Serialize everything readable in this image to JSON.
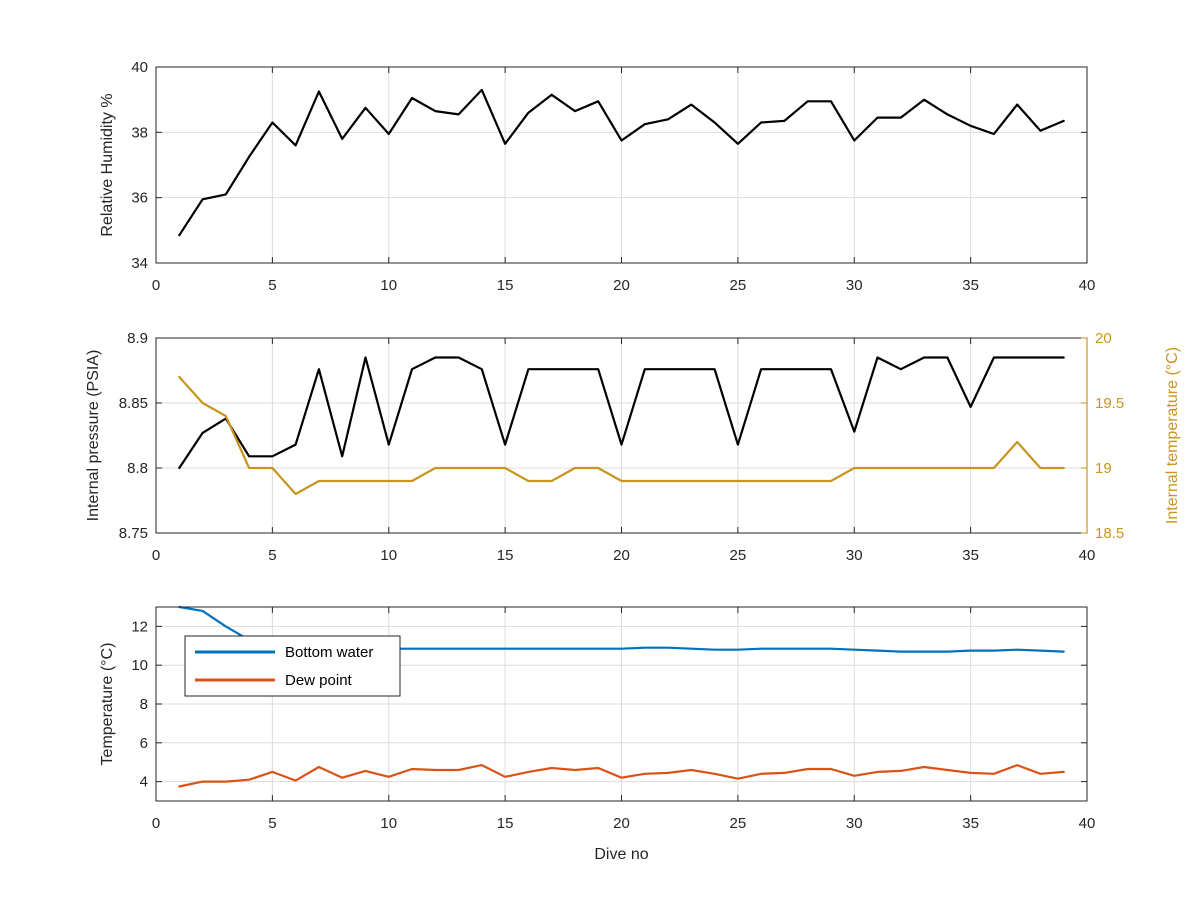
{
  "chart_data": [
    {
      "type": "line",
      "xlabel": "",
      "ylabel": "Relative Humidity %",
      "xlim": [
        0,
        40
      ],
      "ylim": [
        34,
        40
      ],
      "xticks": [
        0,
        5,
        10,
        15,
        20,
        25,
        30,
        35,
        40
      ],
      "yticks": [
        34,
        36,
        38,
        40
      ],
      "grid": true,
      "series": [
        {
          "color": "#000000",
          "x": [
            1,
            2,
            3,
            4,
            5,
            6,
            7,
            8,
            9,
            10,
            11,
            12,
            13,
            14,
            15,
            16,
            17,
            18,
            19,
            20,
            21,
            22,
            23,
            24,
            25,
            26,
            27,
            28,
            29,
            30,
            31,
            32,
            33,
            34,
            35,
            36,
            37,
            38,
            39
          ],
          "values": [
            34.85,
            35.95,
            36.1,
            37.25,
            38.3,
            37.6,
            39.25,
            37.8,
            38.75,
            37.95,
            39.05,
            38.65,
            38.55,
            39.3,
            37.65,
            38.6,
            39.15,
            38.65,
            38.95,
            37.75,
            38.25,
            38.4,
            38.85,
            38.3,
            37.65,
            38.3,
            38.35,
            38.95,
            38.95,
            37.75,
            38.45,
            38.45,
            39.0,
            38.55,
            38.2,
            37.95,
            38.85,
            38.05,
            38.35
          ]
        }
      ]
    },
    {
      "type": "line",
      "xlabel": "",
      "ylabel": "Internal pressure (PSIA)",
      "ylabel_right": "Internal temperature (°C)",
      "xlim": [
        0,
        40
      ],
      "ylim": [
        8.75,
        8.9
      ],
      "ylim_right": [
        18.5,
        20
      ],
      "xticks": [
        0,
        5,
        10,
        15,
        20,
        25,
        30,
        35,
        40
      ],
      "yticks": [
        "8.75",
        "8.8",
        "8.85",
        "8.9"
      ],
      "yticks_right": [
        "18.5",
        "19",
        "19.5",
        "20"
      ],
      "grid": true,
      "series": [
        {
          "axis": "left",
          "color": "#000000",
          "x": [
            1,
            2,
            3,
            4,
            5,
            6,
            7,
            8,
            9,
            10,
            11,
            12,
            13,
            14,
            15,
            16,
            17,
            18,
            19,
            20,
            21,
            22,
            23,
            24,
            25,
            26,
            27,
            28,
            29,
            30,
            31,
            32,
            33,
            34,
            35,
            36,
            37,
            38,
            39
          ],
          "values": [
            8.8,
            8.827,
            8.838,
            8.809,
            8.809,
            8.818,
            8.876,
            8.809,
            8.885,
            8.818,
            8.876,
            8.885,
            8.885,
            8.876,
            8.818,
            8.876,
            8.876,
            8.876,
            8.876,
            8.818,
            8.876,
            8.876,
            8.876,
            8.876,
            8.818,
            8.876,
            8.876,
            8.876,
            8.876,
            8.828,
            8.885,
            8.876,
            8.885,
            8.885,
            8.847,
            8.885,
            8.885,
            8.885,
            8.885
          ]
        },
        {
          "axis": "right",
          "color": "#C8961E",
          "x": [
            1,
            2,
            3,
            4,
            5,
            6,
            7,
            8,
            9,
            10,
            11,
            12,
            13,
            14,
            15,
            16,
            17,
            18,
            19,
            20,
            21,
            22,
            23,
            24,
            25,
            26,
            27,
            28,
            29,
            30,
            31,
            32,
            33,
            34,
            35,
            36,
            37,
            38,
            39
          ],
          "values": [
            19.7,
            19.5,
            19.4,
            19.0,
            19.0,
            18.8,
            18.9,
            18.9,
            18.9,
            18.9,
            18.9,
            19.0,
            19.0,
            19.0,
            19.0,
            18.9,
            18.9,
            19.0,
            19.0,
            18.9,
            18.9,
            18.9,
            18.9,
            18.9,
            18.9,
            18.9,
            18.9,
            18.9,
            18.9,
            19.0,
            19.0,
            19.0,
            19.0,
            19.0,
            19.0,
            19.0,
            19.2,
            19.0,
            19.0
          ]
        }
      ]
    },
    {
      "type": "line",
      "xlabel": "Dive no",
      "ylabel": "Temperature (°C)",
      "xlim": [
        0,
        40
      ],
      "ylim": [
        3,
        13
      ],
      "xticks": [
        0,
        5,
        10,
        15,
        20,
        25,
        30,
        35,
        40
      ],
      "yticks": [
        4,
        6,
        8,
        10,
        12
      ],
      "grid": true,
      "legend": {
        "placement": "top-left"
      },
      "series": [
        {
          "name": "Bottom water",
          "color": "#0072BD",
          "x": [
            1,
            2,
            3,
            4,
            5,
            6,
            7,
            8,
            9,
            10,
            11,
            12,
            13,
            14,
            15,
            16,
            17,
            18,
            19,
            20,
            21,
            22,
            23,
            24,
            25,
            26,
            27,
            28,
            29,
            30,
            31,
            32,
            33,
            34,
            35,
            36,
            37,
            38,
            39
          ],
          "values": [
            13.0,
            12.8,
            12.0,
            11.3,
            10.85,
            10.85,
            10.85,
            10.85,
            10.85,
            10.85,
            10.85,
            10.85,
            10.85,
            10.85,
            10.85,
            10.85,
            10.85,
            10.85,
            10.85,
            10.85,
            10.9,
            10.9,
            10.85,
            10.8,
            10.8,
            10.85,
            10.85,
            10.85,
            10.85,
            10.8,
            10.75,
            10.7,
            10.7,
            10.7,
            10.75,
            10.75,
            10.8,
            10.75,
            10.7
          ]
        },
        {
          "name": "Dew point",
          "color": "#D95319",
          "x": [
            1,
            2,
            3,
            4,
            5,
            6,
            7,
            8,
            9,
            10,
            11,
            12,
            13,
            14,
            15,
            16,
            17,
            18,
            19,
            20,
            21,
            22,
            23,
            24,
            25,
            26,
            27,
            28,
            29,
            30,
            31,
            32,
            33,
            34,
            35,
            36,
            37,
            38,
            39
          ],
          "values": [
            3.75,
            4.0,
            4.0,
            4.1,
            4.5,
            4.05,
            4.75,
            4.2,
            4.55,
            4.25,
            4.65,
            4.6,
            4.6,
            4.85,
            4.25,
            4.5,
            4.7,
            4.6,
            4.7,
            4.2,
            4.4,
            4.45,
            4.6,
            4.4,
            4.15,
            4.4,
            4.45,
            4.65,
            4.65,
            4.3,
            4.5,
            4.55,
            4.75,
            4.6,
            4.45,
            4.4,
            4.85,
            4.4,
            4.5
          ]
        }
      ]
    }
  ]
}
